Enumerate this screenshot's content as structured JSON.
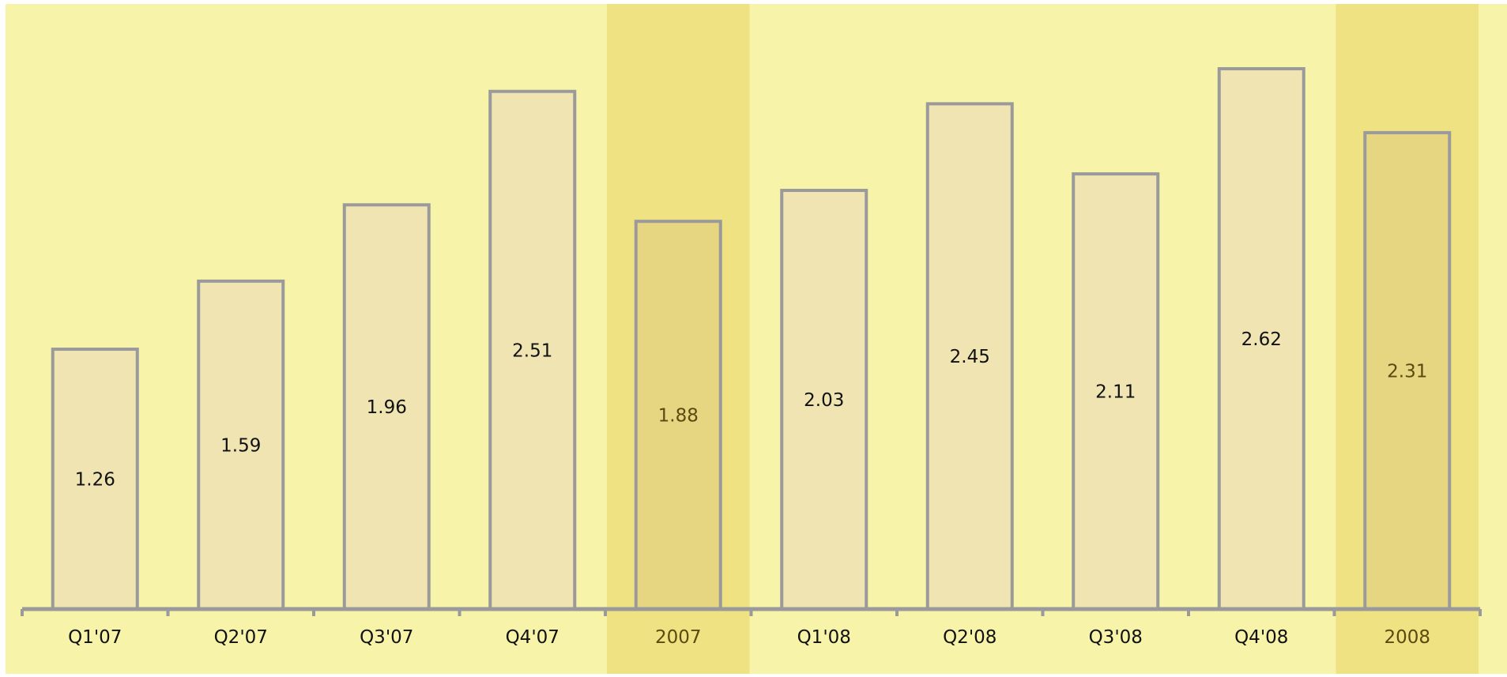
{
  "chart_data": {
    "type": "bar",
    "title": "",
    "xlabel": "",
    "ylabel": "",
    "ylim": [
      0,
      2.8
    ],
    "grid": false,
    "legend": "none",
    "categories": [
      "Q1'07",
      "Q2'07",
      "Q3'07",
      "Q4'07",
      "2007",
      "Q1'08",
      "Q2'08",
      "Q3'08",
      "Q4'08",
      "2008"
    ],
    "values": [
      1.26,
      1.59,
      1.96,
      2.51,
      1.88,
      2.03,
      2.45,
      2.11,
      2.62,
      2.31
    ],
    "value_labels": [
      "1.26",
      "1.59",
      "1.96",
      "2.51",
      "1.88",
      "2.03",
      "2.45",
      "2.11",
      "2.62",
      "2.31"
    ],
    "highlighted_categories": [
      "2007",
      "2008"
    ]
  },
  "colors": {
    "background": "#f7f3a9",
    "highlight_band": "#efe283",
    "bar_fill": "#f0e5b2",
    "bar_fill_highlight": "#e6d681",
    "bar_stroke": "#9a9a9a",
    "axis": "#9a9a9a",
    "label_text": "#111111",
    "label_text_highlight": "#5a4a10"
  }
}
